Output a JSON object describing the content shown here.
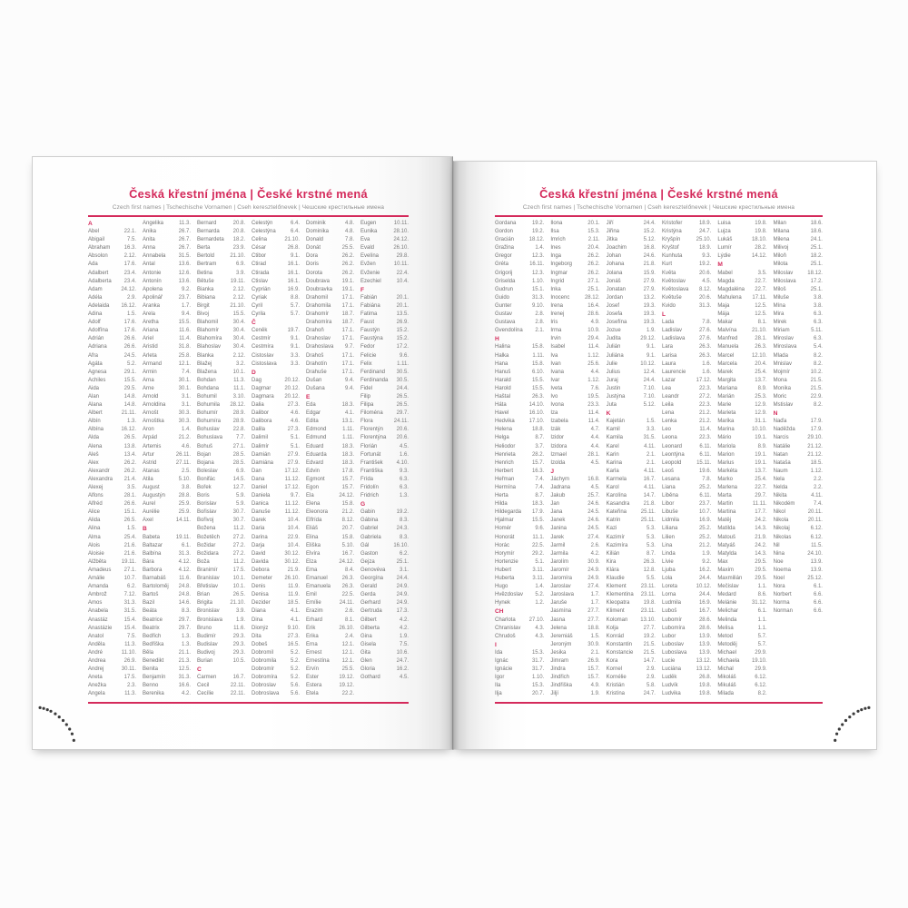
{
  "book": {
    "title": "Česká křestní jména | České krstné mená",
    "subtitle": "Czech first names | Tschechische Vornamen | Cseh keresztelőnevek | Чешские крестильные имена",
    "accent_color": "#d42a5b",
    "left_page": {
      "entries": [
        "#A",
        "Abel|22.1.",
        "Abigail|7.5.",
        "Abraham|16.3.",
        "Absolon|2.12.",
        "Ada|17.6.",
        "Adalbert|23.4.",
        "Adalberta|23.4.",
        "Adam|24.12.",
        "Adéla|2.9.",
        "Adelaida|16.12.",
        "Adina|1.5.",
        "Adolf|17.6.",
        "Adolfína|17.6.",
        "Adrián|26.6.",
        "Adriana|26.6.",
        "Afra|24.5.",
        "Agáta|5.2.",
        "Agnesa|29.1.",
        "Achiles|15.5.",
        "Aida|29.5.",
        "Alan|14.8.",
        "Alana|14.8.",
        "Albert|21.11.",
        "Albín|1.3.",
        "Albína|16.12.",
        "Alda|26.5.",
        "Alena|13.8.",
        "Aleš|13.4.",
        "Alex|26.2.",
        "Alexandr|26.2.",
        "Alexandra|21.4.",
        "Alexej|3.5.",
        "Alfons|28.1.",
        "Alfréd|26.6.",
        "Alice|15.1.",
        "Alida|26.5.",
        "Alina|1.5.",
        "Alma|25.4.",
        "Alois|21.6.",
        "Aloisie|21.6.",
        "Alžběta|19.11.",
        "Amadeus|27.1.",
        "Amálie|10.7.",
        "Amanda|6.2.",
        "Ambrož|7.12.",
        "Amos|31.3.",
        "Anabela|31.5.",
        "Anastáz|15.4.",
        "Anastázie|15.4.",
        "Anatol|7.5.",
        "Anděla|11.3.",
        "André|11.10.",
        "Andrea|26.9.",
        "Andrej|30.11.",
        "Aneta|17.5.",
        "Anežka|2.3.",
        "Angela|11.3.",
        "Angelika|11.3.",
        "Anika|26.7.",
        "Anita|26.7.",
        "Anna|26.7.",
        "Annabela|31.5.",
        "Antal|13.6.",
        "Antonie|12.6.",
        "Antonín|13.6.",
        "Apolena|9.2.",
        "Apolinář|23.7.",
        "Aranka|1.7.",
        "Arela|9.4.",
        "Aretha|15.5.",
        "Ariana|11.6.",
        "Ariel|11.4.",
        "Aristid|31.8.",
        "Arleta|25.8.",
        "Armand|12.1.",
        "Armin|7.4.",
        "Arna|30.1.",
        "Arne|30.1.",
        "Arnold|3.1.",
        "Arnoldina|3.1.",
        "Arnošt|30.3.",
        "Arnoštka|30.3.",
        "Aron|1.4.",
        "Árpád|21.2.",
        "Artemis|4.6.",
        "Artur|26.11.",
        "Astrid|27.11.",
        "Atanas|2.5.",
        "Atila|5.10.",
        "August|3.8.",
        "Augustýn|28.8.",
        "Aurel|25.9.",
        "Aurélie|25.9.",
        "Axel|14.11.",
        "#B",
        "Babeta|19.11.",
        "Baltazar|6.1.",
        "Balbína|31.3.",
        "Bára|4.12.",
        "Barbora|4.12.",
        "Barnabáš|11.6.",
        "Bartoloměj|24.8.",
        "Bartoš|24.8.",
        "Bazil|14.6.",
        "Beáta|8.3.",
        "Beatrice|29.7.",
        "Beatrix|29.7.",
        "Bedřich|1.3.",
        "Bedřiška|1.3.",
        "Běla|21.1.",
        "Benedikt|21.3.",
        "Benita|12.5.",
        "Benjamín|31.3.",
        "Benno|16.6.",
        "Berenika|4.2.",
        "Bernard|20.8.",
        "Bernarda|20.8.",
        "Bernardeta|18.2.",
        "Berta|23.9.",
        "Bertold|21.10.",
        "Bertram|6.9.",
        "Betina|3.9.",
        "Bětuše|19.11.",
        "Bianka|2.12.",
        "Bibiana|2.12.",
        "Birgit|21.10.",
        "Bivoj|15.5.",
        "Blahomil|30.4.",
        "Blahomír|30.4.",
        "Blahomíra|30.4.",
        "Blahoslav|30.4.",
        "Blanka|2.12.",
        "Blažej|3.2.",
        "Blažena|10.1.",
        "Bohdan|11.3.",
        "Bohdana|11.1.",
        "Bohumil|3.10.",
        "Bohumila|28.12.",
        "Bohumír|28.9.",
        "Bohumíra|28.9.",
        "Bohuslav|22.8.",
        "Bohuslava|7.7.",
        "Bohuš|27.1.",
        "Bojan|28.5.",
        "Bojana|28.5.",
        "Boleslav|6.9.",
        "Bonifác|14.5.",
        "Bořek|12.7.",
        "Boris|5.9.",
        "Borislav|5.9.",
        "Bořislav|30.7.",
        "Bořivoj|30.7.",
        "Božena|11.2.",
        "Božetěch|27.2.",
        "Božidar|27.2.",
        "Božidara|27.2.",
        "Boža|11.2.",
        "Branimír|17.5.",
        "Branislav|10.1.",
        "Břetislav|10.1.",
        "Brian|26.5.",
        "Brigita|21.10.",
        "Bronislav|3.9.",
        "Bronislava|1.9.",
        "Bruno|11.6.",
        "Budimír|29.3.",
        "Budislav|29.3.",
        "Budivoj|29.3.",
        "Burian|10.5.",
        "#C",
        "Carmen|16.7.",
        "Cecil|22.11.",
        "Cecílie|22.11.",
        "Celestýn|6.4.",
        "Celestýna|6.4.",
        "Celina|21.10.",
        "César|26.8.",
        "Ctibor|9.1.",
        "Ctirad|16.1.",
        "Ctirada|16.1.",
        "Ctislav|16.1.",
        "Cyprián|16.9.",
        "Cyriak|8.8.",
        "Cyril|5.7.",
        "Cyrila|5.7.",
        "#Č",
        "Čeněk|19.7.",
        "Čestmír|9.1.",
        "Čestmíra|9.1.",
        "Čistoslav|3.3.",
        "Čistoslava|3.3.",
        "#D",
        "Dag|20.12.",
        "Dagmar|20.12.",
        "Dagmara|20.12.",
        "Dalia|27.3.",
        "Dalibor|4.6.",
        "Dalibora|4.6.",
        "Dalila|27.3.",
        "Dalimil|5.1.",
        "Dalimír|5.1.",
        "Damián|27.9.",
        "Damiána|27.9.",
        "Dan|17.12.",
        "Dana|11.12.",
        "Daniel|17.12.",
        "Daniela|9.7.",
        "Danica|11.12.",
        "Danuše|11.12.",
        "Darek|10.4.",
        "Daria|10.4.",
        "Darina|22.9.",
        "Darja|10.4.",
        "David|30.12.",
        "Davida|30.12.",
        "Debora|21.9.",
        "Demeter|26.10.",
        "Denis|11.9.",
        "Denisa|11.9.",
        "Dezider|18.5.",
        "Diana|4.1.",
        "Dina|4.1.",
        "Dionýz|9.10.",
        "Dita|27.3.",
        "Dobeš|16.5.",
        "Dobromil|5.2.",
        "Dobromila|5.2.",
        "Dobromír|5.2.",
        "Dobromíra|5.2.",
        "Dobroslav|5.6.",
        "Dobroslava|5.6.",
        "Dominik|4.8.",
        "Dominika|4.8.",
        "Donald|7.8.",
        "Donát|25.5.",
        "Dora|26.2.",
        "Doris|26.2.",
        "Dorota|26.2.",
        "Doubrava|19.1.",
        "Doubravka|19.1.",
        "Drahomil|17.1.",
        "Drahomila|17.1.",
        "Drahomír|18.7.",
        "Drahomíra|18.7.",
        "Drahoň|17.1.",
        "Drahoslav|17.1.",
        "Drahoslava|9.7.",
        "Drahoš|17.1.",
        "Drahotín|17.1.",
        "Drahuše|17.1.",
        "Dušan|9.4.",
        "Dušana|9.4.",
        "#E",
        "Eda|18.3.",
        "Edgar|4.1.",
        "Edita|13.1.",
        "Edmond|1.11.",
        "Edmund|1.11.",
        "Eduard|18.3.",
        "Eduarda|18.3.",
        "Edvard|18.3.",
        "Edvin|17.8.",
        "Egmont|15.7.",
        "Egon|15.7.",
        "Ela|24.12.",
        "Elena|15.8.",
        "Eleonora|21.2.",
        "Elfrída|8.12.",
        "Eliáš|20.7.",
        "Elina|15.8.",
        "Eliška|5.10.",
        "Elvíra|16.7.",
        "Elza|24.12.",
        "Ema|8.4.",
        "Emanuel|26.3.",
        "Emanuela|26.3.",
        "Emil|22.5.",
        "Emílie|24.11.",
        "Erazim|2.6.",
        "Erhard|8.1.",
        "Erik|26.10.",
        "Erika|2.4.",
        "Erna|12.1.",
        "Ernest|12.1.",
        "Ernestína|12.1.",
        "Ervín|25.5.",
        "Ester|19.12.",
        "Estera|19.12.",
        "Etela|22.2.",
        "Eugen|10.11.",
        "Eunika|28.10.",
        "Eva|24.12.",
        "Evald|26.10.",
        "Evelína|29.8.",
        "Evžen|10.11.",
        "Evženie|22.4.",
        "Ezechiel|10.4.",
        "#F",
        "Fabián|20.1.",
        "Fabiána|20.1.",
        "Fatima|13.5.",
        "Faust|26.9.",
        "Faustýn|15.2.",
        "Faustýna|15.2.",
        "Fedor|17.2.",
        "Felicie|9.6.",
        "Felix|1.11.",
        "Ferdinand|30.5.",
        "Ferdinanda|30.5.",
        "Fidel|24.4.",
        "Filip|26.5.",
        "Filipa|26.5.",
        "Filoména|29.7.",
        "Flora|24.11.",
        "Florentýn|20.6.",
        "Florentýna|20.6.",
        "Florián|4.5.",
        "Fortunát|1.6.",
        "František|4.10.",
        "Františka|9.3.",
        "Frída|6.3.",
        "Fridolín|6.3.",
        "Fridrich|1.3.",
        "#G",
        "Gabin|19.2.",
        "Gábina|8.3.",
        "Gabriel|24.3.",
        "Gabriela|8.3.",
        "Gál|16.10.",
        "Gaston|6.2.",
        "Gejza|25.1.",
        "Genovéva|3.1.",
        "Georgína|24.4.",
        "Gerald|24.9.",
        "Gerda|24.9.",
        "Gerhard|24.9.",
        "Gertruda|17.3.",
        "Gilbert|4.2.",
        "Gilberta|4.2.",
        "Gina|1.9.",
        "Gisela|7.5.",
        "Gita|10.6.",
        "Glen|24.7.",
        "Gloria|16.2.",
        "Gothard|4.5."
      ]
    },
    "right_page": {
      "entries": [
        "Gordana|19.2.",
        "Gordon|19.2.",
        "Gracián|18.12.",
        "Gražina|1.4.",
        "Gregor|12.3.",
        "Gréta|16.11.",
        "Grigorij|12.3.",
        "Griselda|1.10.",
        "Gudrun|15.1.",
        "Guido|31.3.",
        "Gunter|9.10.",
        "Gustav|2.8.",
        "Gustava|2.8.",
        "Gvendolína|2.1.",
        "#H",
        "Halina|15.8.",
        "Halka|1.11.",
        "Hana|15.8.",
        "Hanuš|6.10.",
        "Harald|15.5.",
        "Harold|15.5.",
        "Haštal|26.3.",
        "Háta|14.10.",
        "Havel|16.10.",
        "Hedvika|17.10.",
        "Helena|18.8.",
        "Helga|8.7.",
        "Heliodor|3.7.",
        "Henrieta|28.2.",
        "Henrich|15.7.",
        "Herbert|16.3.",
        "Heřman|7.4.",
        "Hermína|7.4.",
        "Herta|8.7.",
        "Hilda|18.3.",
        "Hildegarda|17.9.",
        "Hjalmar|15.5.",
        "Homér|9.6.",
        "Honorát|11.1.",
        "Horác|22.5.",
        "Horymír|29.2.",
        "Hortenzie|5.1.",
        "Hubert|3.11.",
        "Huberta|3.11.",
        "Hugo|1.4.",
        "Hvězdoslav|5.2.",
        "Hynek|1.2.",
        "#CH",
        "Charlota|27.10.",
        "Chranislav|4.3.",
        "Chrudoš|4.3.",
        "#I",
        "Ida|15.3.",
        "Ignác|31.7.",
        "Ignácie|31.7.",
        "Igor|1.10.",
        "Ila|15.3.",
        "Ilja|20.7.",
        "Ilona|20.1.",
        "Ilsa|15.3.",
        "Imrich|2.11.",
        "Ines|20.4.",
        "Inga|26.2.",
        "Ingeborg|26.2.",
        "Ingmar|26.2.",
        "Ingrid|27.1.",
        "Inka|25.1.",
        "Inocenc|28.12.",
        "Irena|16.4.",
        "Irenej|28.6.",
        "Iris|4.9.",
        "Irma|10.9.",
        "Irvin|29.4.",
        "Isabel|11.4.",
        "Iva|1.12.",
        "Ivan|25.6.",
        "Ivana|4.4.",
        "Ivar|1.12.",
        "Iveta|7.6.",
        "Ivo|19.5.",
        "Ivona|23.3.",
        "Iza|11.4.",
        "Izabela|11.4.",
        "Izák|4.7.",
        "Izidor|4.4.",
        "Izidora|4.4.",
        "Izmael|28.1.",
        "Izolda|4.5.",
        "#J",
        "Jáchym|16.8.",
        "Jadrana|4.5.",
        "Jakub|25.7.",
        "Jan|24.6.",
        "Jana|24.5.",
        "Janek|24.6.",
        "Janina|24.5.",
        "Jarek|27.4.",
        "Jarmil|2.6.",
        "Jarmila|4.2.",
        "Jarolím|30.9.",
        "Jaromír|24.9.",
        "Jaromíra|24.9.",
        "Jaroslav|27.4.",
        "Jaroslava|1.7.",
        "Jaruše|1.7.",
        "Jasmína|27.7.",
        "Jasna|27.7.",
        "Jelena|18.8.",
        "Jeremiáš|1.5.",
        "Jeroným|30.9.",
        "Jesika|2.1.",
        "Jimram|26.9.",
        "Jindra|15.7.",
        "Jindřich|15.7.",
        "Jindřiška|4.9.",
        "Jiljí|1.9.",
        "Jiří|24.4.",
        "Jiřina|15.2.",
        "Jitka|5.12.",
        "Joachim|16.8.",
        "Johan|24.6.",
        "Johana|21.8.",
        "Jolana|15.9.",
        "Jonáš|27.9.",
        "Jonatan|27.9.",
        "Jordan|13.2.",
        "Josef|19.3.",
        "Josefa|19.3.",
        "Josefína|19.3.",
        "Jozue|1.9.",
        "Judita|29.12.",
        "Julián|9.1.",
        "Juliána|9.1.",
        "Julie|10.12.",
        "Julius|12.4.",
        "Juraj|24.4.",
        "Justin|7.10.",
        "Justýna|7.10.",
        "Juta|5.12.",
        "#K",
        "Kajetán|1.5.",
        "Kamil|3.3.",
        "Kamila|31.5.",
        "Karel|4.11.",
        "Karin|2.1.",
        "Karina|2.1.",
        "Karla|4.11.",
        "Karmela|16.7.",
        "Karol|4.11.",
        "Karolína|14.7.",
        "Kasandra|21.8.",
        "Kateřina|25.11.",
        "Katrin|25.11.",
        "Kazi|5.3.",
        "Kazimír|5.3.",
        "Kazimíra|5.3.",
        "Kilián|8.7.",
        "Kira|26.3.",
        "Klára|12.8.",
        "Klaudie|5.5.",
        "Klement|23.11.",
        "Klementina|23.11.",
        "Kleopatra|19.8.",
        "Kliment|23.11.",
        "Koloman|13.10.",
        "Kolja|27.7.",
        "Konrád|19.2.",
        "Konstantin|21.5.",
        "Konstancie|21.5.",
        "Kora|14.7.",
        "Kornel|2.9.",
        "Kornélie|2.9.",
        "Kristián|5.8.",
        "Kristína|24.7.",
        "Kristofer|18.9.",
        "Kristýna|24.7.",
        "Kryšpín|25.10.",
        "Kryštof|18.9.",
        "Kunhuta|9.3.",
        "Kurt|19.2.",
        "Květa|20.6.",
        "Květoslav|4.5.",
        "Květoslava|8.12.",
        "Květuše|20.6.",
        "Kvido|31.3.",
        "#L",
        "Lada|7.8.",
        "Ladislav|27.6.",
        "Ladislava|27.6.",
        "Lara|26.3.",
        "Larisa|26.3.",
        "Laura|1.6.",
        "Laurencie|1.6.",
        "Lazar|17.12.",
        "Lea|22.3.",
        "Leandr|27.2.",
        "Leila|22.3.",
        "Lena|21.2.",
        "Lenka|21.2.",
        "Leo|11.4.",
        "Leona|22.3.",
        "Leonard|6.11.",
        "Leontýna|6.11.",
        "Leopold|15.11.",
        "Leoš|19.6.",
        "Lesana|7.8.",
        "Liana|25.2.",
        "Liběna|6.11.",
        "Libor|23.7.",
        "Libuše|10.7.",
        "Lidmila|16.9.",
        "Liliana|25.2.",
        "Lilien|25.2.",
        "Lina|21.2.",
        "Linda|1.9.",
        "Lívie|9.2.",
        "Ljuba|16.2.",
        "Lola|24.4.",
        "Loreta|10.12.",
        "Lorna|24.4.",
        "Ludmila|16.9.",
        "Luboš|16.7.",
        "Lubomír|28.6.",
        "Lubomíra|28.6.",
        "Lubor|13.9.",
        "Luboslav|13.9.",
        "Luboslava|13.9.",
        "Lucie|13.12.",
        "Luciána|13.12.",
        "Luděk|26.8.",
        "Ludvík|19.8.",
        "Ludvika|19.8.",
        "Luisa|19.8.",
        "Lujza|19.8.",
        "Lukáš|18.10.",
        "Lumír|28.2.",
        "Lýdie|14.12.",
        "#M",
        "Mabel|3.5.",
        "Magda|22.7.",
        "Magdaléna|22.7.",
        "Mahulena|17.11.",
        "Maja|12.5.",
        "Mája|12.5.",
        "Makar|8.1.",
        "Malvína|21.10.",
        "Manfred|28.1.",
        "Manuela|26.3.",
        "Marcel|12.10.",
        "Marcela|20.4.",
        "Marek|25.4.",
        "Margita|13.7.",
        "Mariana|8.9.",
        "Marián|25.3.",
        "Marie|12.9.",
        "Marieta|12.9.",
        "Marika|31.1.",
        "Marina|10.10.",
        "Mário|19.1.",
        "Mariola|8.9.",
        "Marion|19.1.",
        "Marius|19.1.",
        "Markéta|13.7.",
        "Marko|25.4.",
        "Marlena|22.7.",
        "Marta|29.7.",
        "Martin|11.11.",
        "Martina|17.7.",
        "Matěj|24.2.",
        "Matilda|14.3.",
        "Matouš|21.9.",
        "Matyáš|24.2.",
        "Matylda|14.3.",
        "Max|29.5.",
        "Maxim|29.5.",
        "Maxmilián|29.5.",
        "Mečislav|1.1.",
        "Medard|8.6.",
        "Melánie|31.12.",
        "Melichar|6.1.",
        "Melinda|1.1.",
        "Melisa|1.1.",
        "Metod|5.7.",
        "Metoděj|5.7.",
        "Michael|29.9.",
        "Michaela|19.10.",
        "Michal|29.9.",
        "Mikoláš|6.12.",
        "Mikuláš|6.12.",
        "Milada|8.2.",
        "Milan|18.6.",
        "Milana|18.6.",
        "Milena|24.1.",
        "Milivoj|25.1.",
        "Miloň|18.2.",
        "Milota|25.1.",
        "Miloslav|18.12.",
        "Miloslava|17.2.",
        "Miloš|25.1.",
        "Miluše|3.8.",
        "Mína|3.8.",
        "Mira|6.3.",
        "Mirek|6.3.",
        "Miriam|5.11.",
        "Miroslav|6.3.",
        "Miroslava|5.4.",
        "Mlada|8.2.",
        "Mnislav|8.2.",
        "Mojmír|10.2.",
        "Mona|21.5.",
        "Monika|21.5.",
        "Moric|22.9.",
        "Mstislav|8.2.",
        "#N",
        "Naďa|17.9.",
        "Naděžda|17.9.",
        "Narcis|29.10.",
        "Natálie|21.12.",
        "Natan|21.12.",
        "Nataša|18.5.",
        "Naum|1.12.",
        "Nela|2.2.",
        "Nelda|2.2.",
        "Nikita|4.11.",
        "Nikodém|7.4.",
        "Nikol|20.11.",
        "Nikola|20.11.",
        "Nikolaj|6.12.",
        "Nikolas|6.12.",
        "Nil|11.5.",
        "Nina|24.10.",
        "Noe|13.9.",
        "Noema|13.9.",
        "Noel|25.12.",
        "Nora|6.1.",
        "Norbert|6.6.",
        "Norma|6.6.",
        "Norman|6.6."
      ]
    }
  }
}
